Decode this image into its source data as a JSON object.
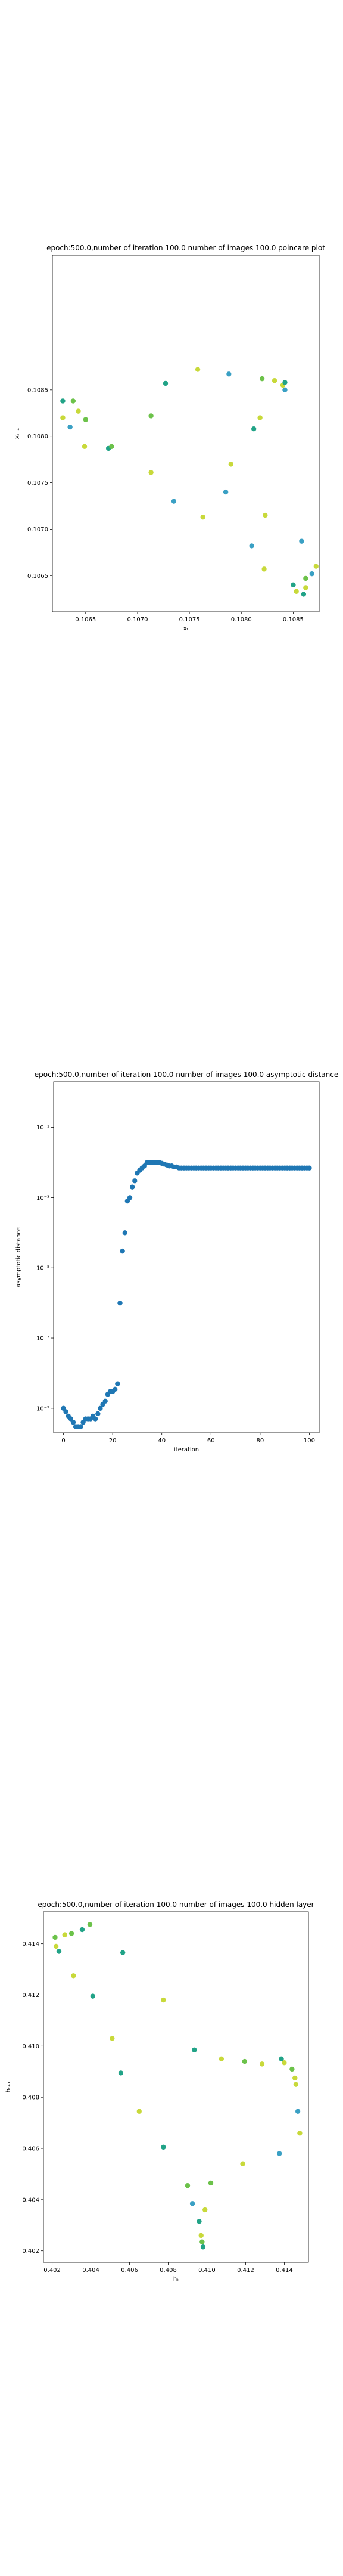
{
  "chart_data": [
    {
      "type": "scatter",
      "title": "epoch:500.0,number of iteration 100.0 number of images 100.0 poincare plot",
      "xlabel": "xₜ",
      "ylabel": "xₜ₊₁",
      "xlim": [
        0.10618,
        0.10875
      ],
      "ylim": [
        0.10611,
        0.10995
      ],
      "xticks": [
        0.1065,
        0.107,
        0.1075,
        0.108,
        0.1085
      ],
      "xtick_labels": [
        "0.1065",
        "0.1070",
        "0.1075",
        "0.1080",
        "0.1085"
      ],
      "yticks": [
        0.1065,
        0.107,
        0.1075,
        0.108,
        0.1085
      ],
      "ytick_labels": [
        "0.1065",
        "0.1070",
        "0.1075",
        "0.1080",
        "0.1085"
      ],
      "colors": [
        "#3aa0c4",
        "#21a387",
        "#6cc24a",
        "#c8d93a"
      ],
      "points": [
        {
          "x": 0.10628,
          "y": 0.10838,
          "c": 1
        },
        {
          "x": 0.10628,
          "y": 0.1082,
          "c": 3
        },
        {
          "x": 0.10635,
          "y": 0.1081,
          "c": 0
        },
        {
          "x": 0.10638,
          "y": 0.10838,
          "c": 2
        },
        {
          "x": 0.10643,
          "y": 0.10827,
          "c": 3
        },
        {
          "x": 0.1065,
          "y": 0.10818,
          "c": 2
        },
        {
          "x": 0.10649,
          "y": 0.10789,
          "c": 3
        },
        {
          "x": 0.10672,
          "y": 0.10787,
          "c": 1
        },
        {
          "x": 0.10675,
          "y": 0.10789,
          "c": 2
        },
        {
          "x": 0.10713,
          "y": 0.10822,
          "c": 2
        },
        {
          "x": 0.10713,
          "y": 0.10761,
          "c": 3
        },
        {
          "x": 0.10727,
          "y": 0.10857,
          "c": 1
        },
        {
          "x": 0.10735,
          "y": 0.1073,
          "c": 0
        },
        {
          "x": 0.10758,
          "y": 0.10872,
          "c": 3
        },
        {
          "x": 0.10763,
          "y": 0.10713,
          "c": 3
        },
        {
          "x": 0.10788,
          "y": 0.10867,
          "c": 0
        },
        {
          "x": 0.10785,
          "y": 0.1074,
          "c": 0
        },
        {
          "x": 0.1079,
          "y": 0.1077,
          "c": 3
        },
        {
          "x": 0.1081,
          "y": 0.10682,
          "c": 0
        },
        {
          "x": 0.10812,
          "y": 0.10808,
          "c": 1
        },
        {
          "x": 0.1082,
          "y": 0.10862,
          "c": 2
        },
        {
          "x": 0.10818,
          "y": 0.1082,
          "c": 3
        },
        {
          "x": 0.10823,
          "y": 0.10715,
          "c": 3
        },
        {
          "x": 0.10822,
          "y": 0.10657,
          "c": 3
        },
        {
          "x": 0.10832,
          "y": 0.1086,
          "c": 3
        },
        {
          "x": 0.1084,
          "y": 0.10855,
          "c": 3
        },
        {
          "x": 0.10842,
          "y": 0.1085,
          "c": 0
        },
        {
          "x": 0.10842,
          "y": 0.10858,
          "c": 1
        },
        {
          "x": 0.1085,
          "y": 0.1064,
          "c": 1
        },
        {
          "x": 0.10853,
          "y": 0.10633,
          "c": 3
        },
        {
          "x": 0.10858,
          "y": 0.10687,
          "c": 0
        },
        {
          "x": 0.1086,
          "y": 0.1063,
          "c": 1
        },
        {
          "x": 0.10862,
          "y": 0.10637,
          "c": 3
        },
        {
          "x": 0.10862,
          "y": 0.10647,
          "c": 2
        },
        {
          "x": 0.10868,
          "y": 0.10652,
          "c": 0
        },
        {
          "x": 0.10872,
          "y": 0.1066,
          "c": 3
        }
      ]
    },
    {
      "type": "scatter",
      "title": "epoch:500.0,number of iteration 100.0  number of images 100.0 asymptotic distance",
      "xlabel": "iteration",
      "ylabel": "asymptotic distance",
      "xlim": [
        -4,
        104
      ],
      "yscale": "log",
      "ylim": [
        2e-10,
        2
      ],
      "xticks": [
        0,
        20,
        40,
        60,
        80,
        100
      ],
      "xtick_labels": [
        "0",
        "20",
        "40",
        "60",
        "80",
        "100"
      ],
      "yticks": [
        1e-09,
        1e-07,
        1e-05,
        0.001,
        0.1
      ],
      "ytick_labels": [
        "10⁻⁹",
        "10⁻⁷",
        "10⁻⁵",
        "10⁻³",
        "10⁻¹"
      ],
      "color": "#1f77b4",
      "x": [
        0,
        1,
        2,
        3,
        4,
        5,
        6,
        7,
        8,
        9,
        10,
        11,
        12,
        13,
        14,
        15,
        16,
        17,
        18,
        19,
        20,
        21,
        22,
        23,
        24,
        25,
        26,
        27,
        28,
        29,
        30,
        31,
        32,
        33,
        34,
        35,
        36,
        37,
        38,
        39,
        40,
        41,
        42,
        43,
        44,
        45,
        46,
        47,
        48,
        49,
        50,
        51,
        52,
        53,
        54,
        55,
        56,
        57,
        58,
        59,
        60,
        61,
        62,
        63,
        64,
        65,
        66,
        67,
        68,
        69,
        70,
        71,
        72,
        73,
        74,
        75,
        76,
        77,
        78,
        79,
        80,
        81,
        82,
        83,
        84,
        85,
        86,
        87,
        88,
        89,
        90,
        91,
        92,
        93,
        94,
        95,
        96,
        97,
        98,
        99,
        100
      ],
      "y": [
        1e-09,
        8e-10,
        6e-10,
        5e-10,
        4e-10,
        3e-10,
        3e-10,
        3e-10,
        4e-10,
        5e-10,
        5e-10,
        5e-10,
        6e-10,
        5e-10,
        7e-10,
        1e-09,
        1.3e-09,
        1.6e-09,
        2.5e-09,
        3e-09,
        3e-09,
        3.5e-09,
        5e-09,
        1e-06,
        3e-05,
        0.0001,
        0.0008,
        0.001,
        0.002,
        0.003,
        0.005,
        0.006,
        0.007,
        0.008,
        0.01,
        0.01,
        0.01,
        0.01,
        0.01,
        0.01,
        0.0095,
        0.009,
        0.0085,
        0.008,
        0.008,
        0.0075,
        0.0075,
        0.007,
        0.007,
        0.007,
        0.007,
        0.007,
        0.007,
        0.007,
        0.007,
        0.007,
        0.007,
        0.007,
        0.007,
        0.007,
        0.007,
        0.007,
        0.007,
        0.007,
        0.007,
        0.007,
        0.007,
        0.007,
        0.007,
        0.007,
        0.007,
        0.007,
        0.007,
        0.007,
        0.007,
        0.007,
        0.007,
        0.007,
        0.007,
        0.007,
        0.007,
        0.007,
        0.007,
        0.007,
        0.007,
        0.007,
        0.007,
        0.007,
        0.007,
        0.007,
        0.007,
        0.007,
        0.007,
        0.007,
        0.007,
        0.007,
        0.007,
        0.007,
        0.007,
        0.007,
        0.007
      ]
    },
    {
      "type": "scatter",
      "title": "epoch:500.0,number of iteration 100.0  number of images 100.0 hidden layer",
      "xlabel": "hₜ",
      "ylabel": "hₜ₊₁",
      "xlim": [
        0.40155,
        0.41525
      ],
      "ylim": [
        0.40155,
        0.41525
      ],
      "xticks": [
        0.402,
        0.404,
        0.406,
        0.408,
        0.41,
        0.412,
        0.414
      ],
      "xtick_labels": [
        "0.402",
        "0.404",
        "0.406",
        "0.408",
        "0.410",
        "0.412",
        "0.414"
      ],
      "yticks": [
        0.402,
        0.404,
        0.406,
        0.408,
        0.41,
        0.412,
        0.414
      ],
      "ytick_labels": [
        "0.402",
        "0.404",
        "0.406",
        "0.408",
        "0.410",
        "0.412",
        "0.414"
      ],
      "colors": [
        "#3aa0c4",
        "#21a387",
        "#6cc24a",
        "#c8d93a"
      ],
      "points": [
        {
          "x": 0.40215,
          "y": 0.41425,
          "c": 2
        },
        {
          "x": 0.4022,
          "y": 0.4139,
          "c": 3
        },
        {
          "x": 0.40235,
          "y": 0.4137,
          "c": 1
        },
        {
          "x": 0.40265,
          "y": 0.41435,
          "c": 3
        },
        {
          "x": 0.403,
          "y": 0.4144,
          "c": 2
        },
        {
          "x": 0.4031,
          "y": 0.41275,
          "c": 3
        },
        {
          "x": 0.40355,
          "y": 0.41455,
          "c": 1
        },
        {
          "x": 0.40395,
          "y": 0.41475,
          "c": 2
        },
        {
          "x": 0.4041,
          "y": 0.41195,
          "c": 1
        },
        {
          "x": 0.4051,
          "y": 0.4103,
          "c": 3
        },
        {
          "x": 0.40555,
          "y": 0.40895,
          "c": 1
        },
        {
          "x": 0.40565,
          "y": 0.41365,
          "c": 1
        },
        {
          "x": 0.4065,
          "y": 0.40745,
          "c": 3
        },
        {
          "x": 0.40775,
          "y": 0.4118,
          "c": 3
        },
        {
          "x": 0.40775,
          "y": 0.40605,
          "c": 1
        },
        {
          "x": 0.409,
          "y": 0.40455,
          "c": 2
        },
        {
          "x": 0.40925,
          "y": 0.40385,
          "c": 0
        },
        {
          "x": 0.40935,
          "y": 0.40985,
          "c": 1
        },
        {
          "x": 0.4096,
          "y": 0.40315,
          "c": 1
        },
        {
          "x": 0.4097,
          "y": 0.4026,
          "c": 3
        },
        {
          "x": 0.40975,
          "y": 0.40235,
          "c": 2
        },
        {
          "x": 0.4098,
          "y": 0.40215,
          "c": 1
        },
        {
          "x": 0.4099,
          "y": 0.4036,
          "c": 3
        },
        {
          "x": 0.4102,
          "y": 0.40465,
          "c": 2
        },
        {
          "x": 0.41075,
          "y": 0.4095,
          "c": 3
        },
        {
          "x": 0.41185,
          "y": 0.4054,
          "c": 3
        },
        {
          "x": 0.41195,
          "y": 0.4094,
          "c": 2
        },
        {
          "x": 0.41285,
          "y": 0.4093,
          "c": 3
        },
        {
          "x": 0.41375,
          "y": 0.4058,
          "c": 0
        },
        {
          "x": 0.41385,
          "y": 0.4095,
          "c": 1
        },
        {
          "x": 0.414,
          "y": 0.40935,
          "c": 3
        },
        {
          "x": 0.4144,
          "y": 0.4091,
          "c": 2
        },
        {
          "x": 0.41455,
          "y": 0.40875,
          "c": 3
        },
        {
          "x": 0.4146,
          "y": 0.4085,
          "c": 3
        },
        {
          "x": 0.4147,
          "y": 0.40745,
          "c": 0
        },
        {
          "x": 0.4148,
          "y": 0.4066,
          "c": 3
        }
      ]
    }
  ]
}
